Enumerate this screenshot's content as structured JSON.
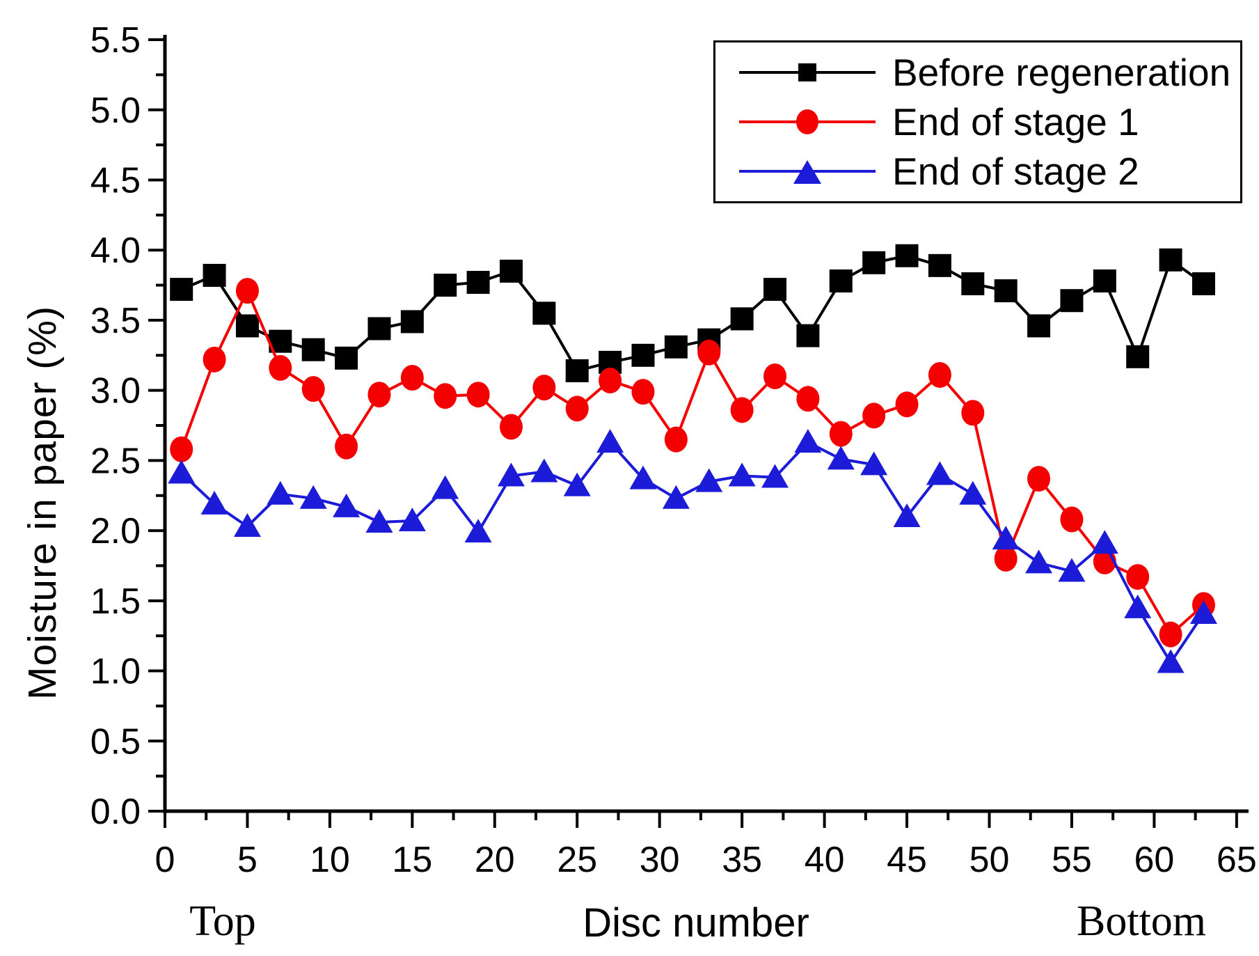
{
  "figure_title": "",
  "chart_data": {
    "type": "line",
    "title": "",
    "xlabel": "Disc number",
    "ylabel": "Moisture in paper (%)",
    "x_left_annotation": "Top",
    "x_right_annotation": "Bottom",
    "xlim": [
      0,
      65
    ],
    "ylim": [
      0.0,
      5.5
    ],
    "x_major_step": 5,
    "x_minor_step": 2.5,
    "y_major_step": 0.5,
    "y_minor_step": 0.25,
    "grid": false,
    "legend_position": "top-right",
    "x_tick_labels": [
      "0",
      "5",
      "10",
      "15",
      "20",
      "25",
      "30",
      "35",
      "40",
      "45",
      "50",
      "55",
      "60",
      "65"
    ],
    "y_tick_labels": [
      "0.0",
      "0.5",
      "1.0",
      "1.5",
      "2.0",
      "2.5",
      "3.0",
      "3.5",
      "4.0",
      "4.5",
      "5.0",
      "5.5"
    ],
    "x": [
      1,
      3,
      5,
      7,
      9,
      11,
      13,
      15,
      17,
      19,
      21,
      23,
      25,
      27,
      29,
      31,
      33,
      35,
      37,
      39,
      41,
      43,
      45,
      47,
      49,
      51,
      53,
      55,
      57,
      59,
      61,
      63
    ],
    "series": [
      {
        "name": "Before regeneration",
        "color": "#000000",
        "marker": "square",
        "values": [
          3.72,
          3.82,
          3.46,
          3.35,
          3.29,
          3.23,
          3.44,
          3.49,
          3.75,
          3.77,
          3.85,
          3.55,
          3.14,
          3.2,
          3.25,
          3.31,
          3.36,
          3.51,
          3.72,
          3.39,
          3.78,
          3.91,
          3.96,
          3.89,
          3.76,
          3.71,
          3.46,
          3.64,
          3.78,
          3.24,
          3.93,
          3.76
        ]
      },
      {
        "name": "End of stage 1",
        "color": "#f50000",
        "marker": "circle",
        "values": [
          2.58,
          3.22,
          3.71,
          3.16,
          3.01,
          2.6,
          2.97,
          3.09,
          2.96,
          2.97,
          2.74,
          3.02,
          2.87,
          3.07,
          2.99,
          2.65,
          3.27,
          2.86,
          3.1,
          2.94,
          2.69,
          2.82,
          2.9,
          3.11,
          2.84,
          1.8,
          2.37,
          2.08,
          1.78,
          1.67,
          1.26,
          1.47
        ]
      },
      {
        "name": "End of stage 2",
        "color": "#1c1cd8",
        "marker": "triangle",
        "values": [
          2.41,
          2.19,
          2.03,
          2.26,
          2.23,
          2.17,
          2.06,
          2.07,
          2.3,
          1.99,
          2.39,
          2.42,
          2.32,
          2.63,
          2.37,
          2.23,
          2.35,
          2.39,
          2.38,
          2.63,
          2.51,
          2.47,
          2.1,
          2.4,
          2.26,
          1.94,
          1.77,
          1.71,
          1.91,
          1.45,
          1.06,
          1.41
        ]
      }
    ]
  }
}
